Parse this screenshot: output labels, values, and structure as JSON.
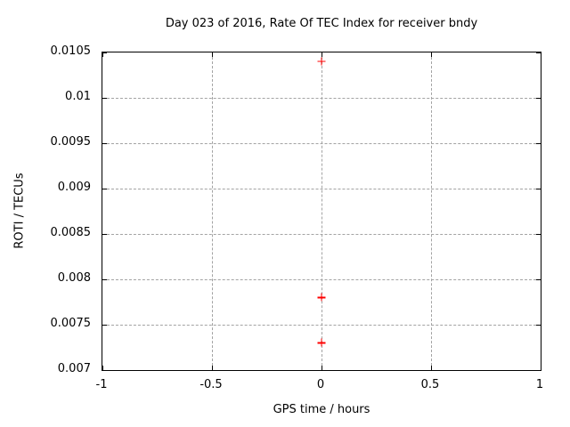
{
  "chart_data": {
    "type": "scatter",
    "title": "Day 023 of 2016, Rate Of TEC Index for receiver bndy",
    "xlabel": "GPS time / hours",
    "ylabel": "ROTI / TECUs",
    "xlim": [
      -1,
      1
    ],
    "ylim": [
      0.007,
      0.0105
    ],
    "xticks": [
      -1,
      -0.5,
      0,
      0.5,
      1
    ],
    "xtick_labels": [
      "-1",
      "-0.5",
      "0",
      "0.5",
      "1"
    ],
    "yticks": [
      0.007,
      0.0075,
      0.008,
      0.0085,
      0.009,
      0.0095,
      0.01,
      0.0105
    ],
    "ytick_labels": [
      "0.007",
      "0.0075",
      "0.008",
      "0.0085",
      "0.009",
      "0.0095",
      "0.01",
      "0.0105"
    ],
    "x_gridlines": [
      -0.5,
      0,
      0.5
    ],
    "y_gridlines": [
      0.0075,
      0.008,
      0.0085,
      0.009,
      0.0095,
      0.01
    ],
    "grid": true,
    "legend_position": "none",
    "marker": "plus",
    "colors": {
      "marker": "#ff0000",
      "grid": "#a3a3a3",
      "axis": "#000000",
      "background": "#ffffff"
    },
    "points": [
      {
        "x": 0,
        "y": 0.0104
      },
      {
        "x": 0,
        "y": 0.0078
      },
      {
        "x": 0,
        "y": 0.0073
      }
    ]
  }
}
